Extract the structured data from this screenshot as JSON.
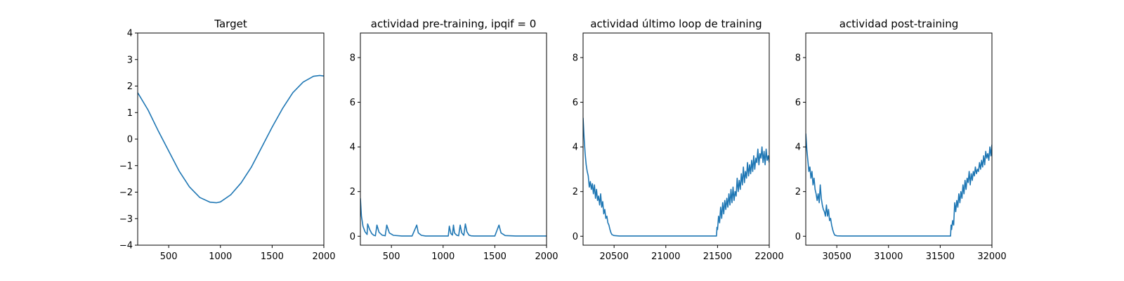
{
  "colors": {
    "series": "#1f77b4",
    "axes": "#000000",
    "background": "#ffffff"
  },
  "chart_data": [
    {
      "type": "line",
      "title": "Target",
      "xlim": [
        200,
        2000
      ],
      "ylim": [
        -4,
        4
      ],
      "xticks": [
        500,
        1000,
        1500,
        2000
      ],
      "yticks": [
        -4,
        -3,
        -2,
        -1,
        0,
        1,
        2,
        3,
        4
      ],
      "xticklabels": [
        "500",
        "1000",
        "1500",
        "2000"
      ],
      "yticklabels": [
        "−4",
        "−3",
        "−2",
        "−1",
        "0",
        "1",
        "2",
        "3",
        "4"
      ],
      "series": [
        {
          "x": [
            200,
            300,
            400,
            500,
            600,
            700,
            800,
            900,
            960,
            1000,
            1100,
            1200,
            1300,
            1400,
            1500,
            1600,
            1700,
            1800,
            1900,
            1960,
            2000
          ],
          "y": [
            1.75,
            1.1,
            0.3,
            -0.45,
            -1.2,
            -1.8,
            -2.2,
            -2.38,
            -2.4,
            -2.37,
            -2.1,
            -1.65,
            -1.05,
            -0.3,
            0.45,
            1.15,
            1.75,
            2.15,
            2.37,
            2.4,
            2.38
          ]
        }
      ]
    },
    {
      "type": "line",
      "title": "actividad pre-training, ipqif = 0",
      "xlim": [
        200,
        2000
      ],
      "ylim": [
        -0.4,
        9.1
      ],
      "xticks": [
        500,
        1000,
        1500,
        2000
      ],
      "yticks": [
        0,
        2,
        4,
        6,
        8
      ],
      "xticklabels": [
        "500",
        "1000",
        "1500",
        "2000"
      ],
      "yticklabels": [
        "0",
        "2",
        "4",
        "6",
        "8"
      ],
      "series": [
        {
          "x": [
            200,
            210,
            225,
            245,
            265,
            270,
            290,
            310,
            330,
            345,
            360,
            380,
            410,
            440,
            455,
            480,
            520,
            600,
            700,
            745,
            760,
            790,
            830,
            900,
            1000,
            1050,
            1060,
            1075,
            1090,
            1100,
            1110,
            1130,
            1150,
            1165,
            1180,
            1200,
            1215,
            1230,
            1250,
            1270,
            1300,
            1400,
            1500,
            1540,
            1560,
            1600,
            1700,
            1800,
            1900,
            2000
          ],
          "y": [
            1.7,
            0.9,
            0.45,
            0.2,
            0.08,
            0.55,
            0.3,
            0.12,
            0.04,
            0.02,
            0.5,
            0.18,
            0.05,
            0.02,
            0.5,
            0.15,
            0.04,
            0.01,
            0.01,
            0.5,
            0.15,
            0.04,
            0.01,
            0.01,
            0.01,
            0.01,
            0.45,
            0.12,
            0.05,
            0.5,
            0.15,
            0.05,
            0.02,
            0.5,
            0.15,
            0.04,
            0.55,
            0.2,
            0.05,
            0.02,
            0.01,
            0.01,
            0.01,
            0.5,
            0.15,
            0.03,
            0.01,
            0.01,
            0.01,
            0.01
          ]
        }
      ]
    },
    {
      "type": "line",
      "title": "actividad último loop de training",
      "xlim": [
        20200,
        22000
      ],
      "ylim": [
        -0.4,
        9.1
      ],
      "xticks": [
        20500,
        21000,
        21500,
        22000
      ],
      "yticks": [
        0,
        2,
        4,
        6,
        8
      ],
      "xticklabels": [
        "20500",
        "21000",
        "21500",
        "22000"
      ],
      "yticklabels": [
        "0",
        "2",
        "4",
        "6",
        "8"
      ],
      "series": [
        {
          "x": [
            20200,
            20210,
            20220,
            20230,
            20240,
            20250,
            20260,
            20270,
            20280,
            20290,
            20300,
            20310,
            20320,
            20330,
            20340,
            20350,
            20360,
            20370,
            20380,
            20390,
            20400,
            20410,
            20420,
            20430,
            20440,
            20450,
            20460,
            20470,
            20480,
            20500,
            20550,
            20700,
            21000,
            21300,
            21490,
            21495,
            21500,
            21510,
            21520,
            21530,
            21540,
            21550,
            21560,
            21570,
            21580,
            21590,
            21600,
            21610,
            21620,
            21630,
            21640,
            21650,
            21660,
            21670,
            21680,
            21690,
            21700,
            21710,
            21720,
            21730,
            21740,
            21750,
            21760,
            21770,
            21780,
            21790,
            21800,
            21810,
            21820,
            21830,
            21840,
            21850,
            21860,
            21870,
            21880,
            21890,
            21900,
            21910,
            21920,
            21930,
            21940,
            21950,
            21960,
            21970,
            21980,
            21990,
            22000
          ],
          "y": [
            5.3,
            4.4,
            3.7,
            3.2,
            2.9,
            2.7,
            2.2,
            2.45,
            2.1,
            2.35,
            1.9,
            2.3,
            1.7,
            2.1,
            1.6,
            1.8,
            1.4,
            1.9,
            1.3,
            1.55,
            1.0,
            1.2,
            0.8,
            0.9,
            0.6,
            0.5,
            0.3,
            0.15,
            0.07,
            0.03,
            0.01,
            0.01,
            0.01,
            0.01,
            0.01,
            0.4,
            0.3,
            0.9,
            0.6,
            1.3,
            0.8,
            1.5,
            1.0,
            1.6,
            1.2,
            1.7,
            1.3,
            1.9,
            1.4,
            2.1,
            1.5,
            2.2,
            1.6,
            2.0,
            1.8,
            2.6,
            2.0,
            2.5,
            2.1,
            2.8,
            2.3,
            3.1,
            2.4,
            2.9,
            2.6,
            3.3,
            2.7,
            3.2,
            2.8,
            3.4,
            2.9,
            3.6,
            3.0,
            3.5,
            3.3,
            3.9,
            3.2,
            3.7,
            3.5,
            4.0,
            3.3,
            3.8,
            3.2,
            3.9,
            3.4,
            3.6,
            3.3
          ]
        }
      ]
    },
    {
      "type": "line",
      "title": "actividad post-training",
      "xlim": [
        30200,
        32000
      ],
      "ylim": [
        -0.4,
        9.1
      ],
      "xticks": [
        30500,
        31000,
        31500,
        32000
      ],
      "yticks": [
        0,
        2,
        4,
        6,
        8
      ],
      "xticklabels": [
        "30500",
        "31000",
        "31500",
        "32000"
      ],
      "yticklabels": [
        "0",
        "2",
        "4",
        "6",
        "8"
      ],
      "series": [
        {
          "x": [
            30200,
            30210,
            30220,
            30230,
            30240,
            30250,
            30260,
            30270,
            30280,
            30290,
            30300,
            30310,
            30320,
            30330,
            30340,
            30350,
            30360,
            30370,
            30380,
            30390,
            30400,
            30410,
            30420,
            30430,
            30440,
            30450,
            30460,
            30470,
            30480,
            30500,
            30550,
            30700,
            31000,
            31300,
            31600,
            31605,
            31610,
            31620,
            31630,
            31640,
            31650,
            31660,
            31670,
            31680,
            31690,
            31700,
            31710,
            31720,
            31730,
            31740,
            31750,
            31760,
            31770,
            31780,
            31790,
            31800,
            31810,
            31820,
            31830,
            31840,
            31850,
            31860,
            31870,
            31880,
            31890,
            31900,
            31910,
            31920,
            31930,
            31940,
            31950,
            31960,
            31970,
            31980,
            31990,
            32000
          ],
          "y": [
            4.6,
            3.9,
            3.4,
            2.9,
            3.1,
            2.6,
            2.9,
            2.3,
            2.6,
            2.1,
            1.9,
            1.6,
            1.9,
            1.5,
            2.3,
            1.7,
            1.4,
            1.2,
            1.1,
            0.9,
            1.4,
            0.9,
            1.2,
            0.7,
            0.8,
            0.5,
            0.3,
            0.15,
            0.05,
            0.02,
            0.01,
            0.01,
            0.01,
            0.01,
            0.01,
            0.5,
            0.3,
            0.7,
            0.5,
            1.5,
            1.1,
            1.6,
            1.3,
            1.9,
            1.5,
            2.0,
            1.7,
            2.3,
            1.9,
            2.5,
            2.1,
            2.6,
            2.4,
            2.9,
            2.3,
            2.8,
            2.5,
            2.9,
            2.7,
            3.1,
            2.8,
            3.0,
            2.9,
            3.3,
            3.0,
            3.4,
            3.1,
            3.6,
            3.2,
            3.8,
            3.5,
            3.7,
            3.4,
            4.0,
            3.6,
            4.1
          ]
        }
      ]
    }
  ]
}
